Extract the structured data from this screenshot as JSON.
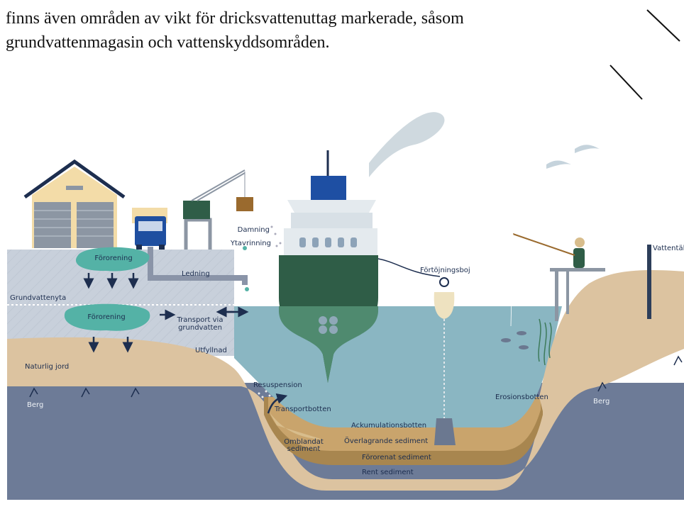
{
  "paragraph": {
    "lines": [
      "finns även områden av vikt för dricksvattenuttag markerade, såsom",
      "grundvattenmagasin och vattenskyddsområden."
    ]
  },
  "diagram": {
    "labels": {
      "pollution_surface": "Förorening",
      "pipe": "Ledning",
      "dust": "Damning",
      "runoff": "Ytavrinning",
      "mooring_buoy": "Förtöjningsboj",
      "water_intake": "Vattentäl",
      "groundwater_level": "Grundvattenyta",
      "pollution_ground": "Förorening",
      "groundwater_transport": [
        "Transport via",
        "grundvatten"
      ],
      "fill": "Utfyllnad",
      "natural_soil": "Naturlig jord",
      "bedrock_left": "Berg",
      "bedrock_right": "Berg",
      "resuspension": "Resuspension",
      "transport_bottom": "Transportbotten",
      "erosion_bottom": "Erosionsbotten",
      "accumulation_bottom": "Ackumulationsbotten",
      "mixed_sediment": [
        "Omblandat",
        "sediment"
      ],
      "overlying_sediment": "Överlagrande sediment",
      "polluted_sediment": "Förorenat sediment",
      "clean_sediment": "Rent sediment"
    }
  }
}
